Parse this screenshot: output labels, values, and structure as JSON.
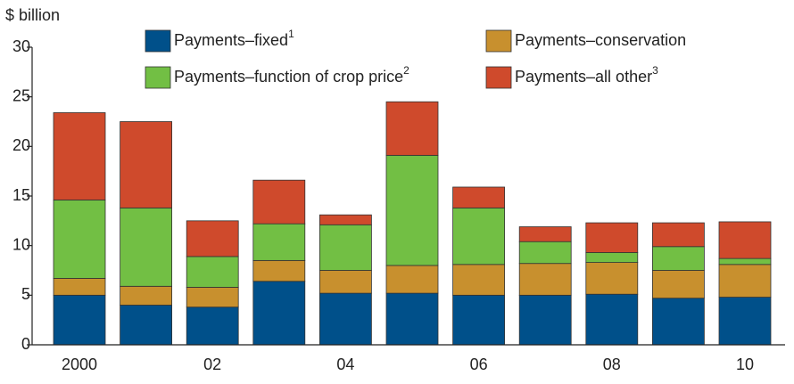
{
  "chart_data": {
    "type": "stacked_bar",
    "y_label": "$ billion",
    "categories": [
      "2000",
      null,
      "02",
      null,
      "04",
      null,
      "06",
      null,
      "08",
      null,
      "10"
    ],
    "series": [
      {
        "name": "Payments–fixed",
        "note": "1",
        "color": "#00508a",
        "values": [
          5.0,
          4.0,
          3.8,
          6.4,
          5.2,
          5.2,
          5.0,
          5.0,
          5.1,
          4.7,
          4.8
        ]
      },
      {
        "name": "Payments–conservation",
        "color": "#c8902e",
        "values": [
          1.7,
          1.9,
          2.0,
          2.1,
          2.3,
          2.8,
          3.1,
          3.2,
          3.2,
          2.8,
          3.3
        ]
      },
      {
        "name": "Payments–function of crop price",
        "note": "2",
        "color": "#72bf44",
        "values": [
          7.9,
          7.9,
          3.1,
          3.7,
          4.6,
          11.1,
          5.7,
          2.2,
          1.0,
          2.4,
          0.6
        ]
      },
      {
        "name": "Payments–all other",
        "note": "3",
        "color": "#cf4a2c",
        "values": [
          8.8,
          8.7,
          3.6,
          4.4,
          1.0,
          5.4,
          2.1,
          1.5,
          3.0,
          2.4,
          3.7
        ]
      }
    ],
    "ylim": [
      0,
      30
    ],
    "yticks": [
      0,
      5,
      10,
      15,
      20,
      25,
      30
    ],
    "legend": "top"
  }
}
